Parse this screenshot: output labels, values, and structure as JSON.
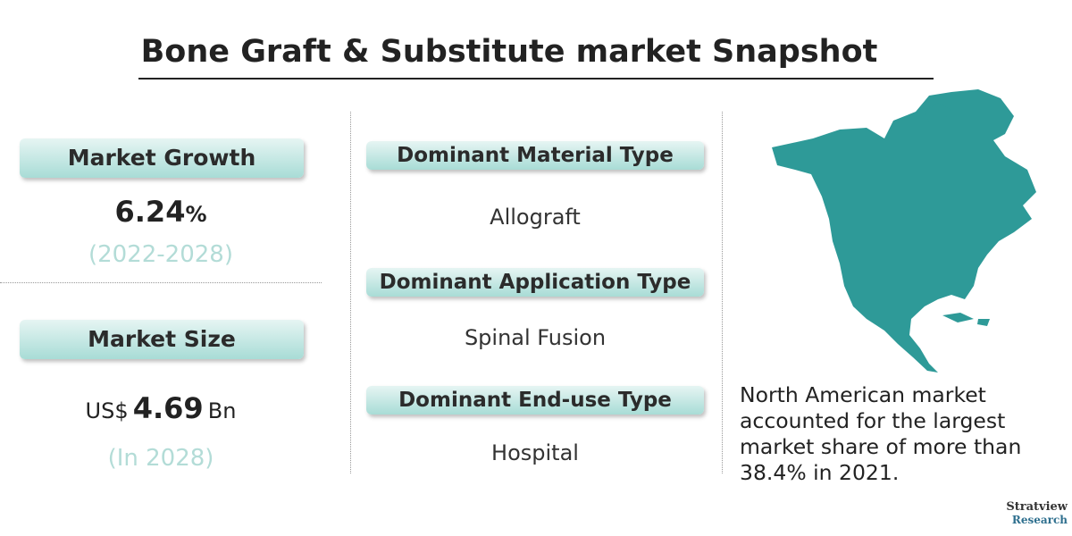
{
  "header": {
    "title": "Bone Graft & Substitute market Snapshot"
  },
  "growth": {
    "label": "Market Growth",
    "value": "6.24",
    "unit": "%",
    "period": "(2022-2028)"
  },
  "size": {
    "label": "Market Size",
    "prefix": "US$",
    "value": "4.69",
    "unit": "Bn",
    "period": "(In 2028)"
  },
  "dominant": [
    {
      "label": "Dominant Material Type",
      "value": "Allograft"
    },
    {
      "label": "Dominant Application Type",
      "value": "Spinal Fusion"
    },
    {
      "label": "Dominant End-use Type",
      "value": "Hospital"
    }
  ],
  "region_note": "North American market accounted for the largest market share of more than 38.4% in 2021.",
  "logo": {
    "name": "Stratview",
    "sub": "Research"
  }
}
